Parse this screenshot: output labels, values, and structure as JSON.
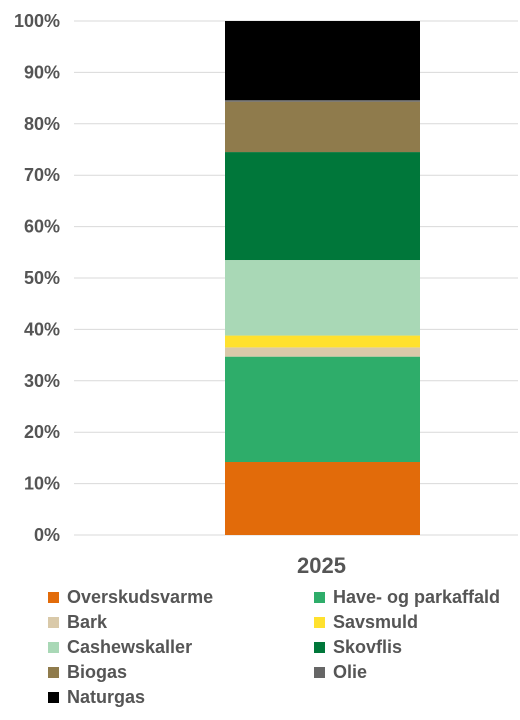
{
  "chart_data": {
    "type": "bar",
    "stacked": true,
    "categories": [
      "2025"
    ],
    "ylim": [
      0,
      100
    ],
    "y_ticks": [
      "0%",
      "10%",
      "20%",
      "30%",
      "40%",
      "50%",
      "60%",
      "70%",
      "80%",
      "90%",
      "100%"
    ],
    "grid": true,
    "legend_position": "bottom",
    "series": [
      {
        "name": "Overskudsvarme",
        "values": [
          14.2
        ],
        "color": "#E26B0A"
      },
      {
        "name": "Have- og parkaffald",
        "values": [
          20.5
        ],
        "color": "#2EAD6A"
      },
      {
        "name": "Bark",
        "values": [
          1.8
        ],
        "color": "#D9C9A9"
      },
      {
        "name": "Savsmuld",
        "values": [
          2.3
        ],
        "color": "#FFE12E"
      },
      {
        "name": "Cashewskaller",
        "values": [
          14.7
        ],
        "color": "#A9D8B6"
      },
      {
        "name": "Skovflis",
        "values": [
          21.0
        ],
        "color": "#00773A"
      },
      {
        "name": "Biogas",
        "values": [
          9.8
        ],
        "color": "#8F7B4C"
      },
      {
        "name": "Olie",
        "values": [
          0.3
        ],
        "color": "#666666"
      },
      {
        "name": "Naturgas",
        "values": [
          15.4
        ],
        "color": "#000000"
      }
    ]
  }
}
